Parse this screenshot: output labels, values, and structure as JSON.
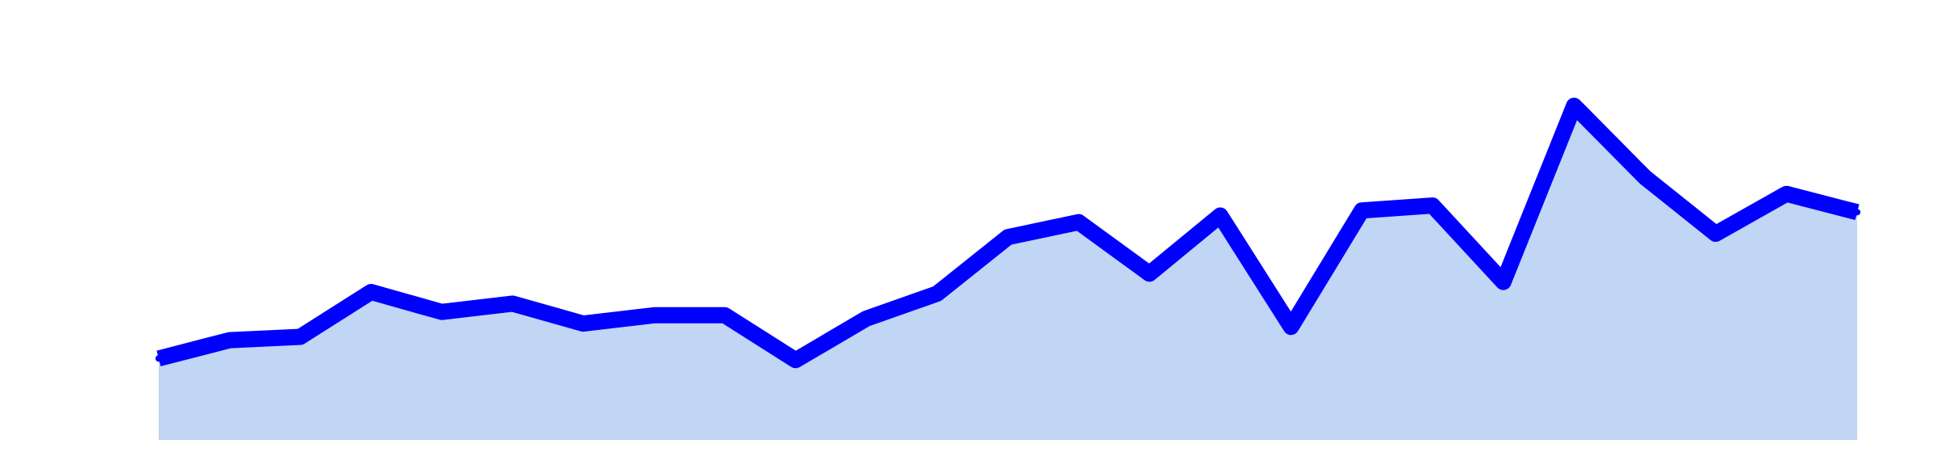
{
  "chart_data": {
    "type": "area",
    "title": "",
    "xlabel": "",
    "ylabel": "",
    "grid": false,
    "legend": "none",
    "x": [
      1,
      2,
      3,
      4,
      5,
      6,
      7,
      8,
      9,
      10,
      11,
      12,
      13,
      14,
      15,
      16,
      17,
      18,
      19,
      20,
      21,
      22,
      23,
      24,
      25
    ],
    "series": [
      {
        "values": [
          9.8,
          12.0,
          12.4,
          17.8,
          15.4,
          16.4,
          14.0,
          15.0,
          15.0,
          9.6,
          14.6,
          17.6,
          24.4,
          26.2,
          20.0,
          27.0,
          13.6,
          27.6,
          28.2,
          19.0,
          40.2,
          31.6,
          24.8,
          29.6,
          27.4
        ],
        "line_color": "#0000ff",
        "fill_color": "#c1d5f5"
      }
    ],
    "xlim": [
      1,
      25
    ],
    "ylim": [
      0,
      50
    ]
  }
}
